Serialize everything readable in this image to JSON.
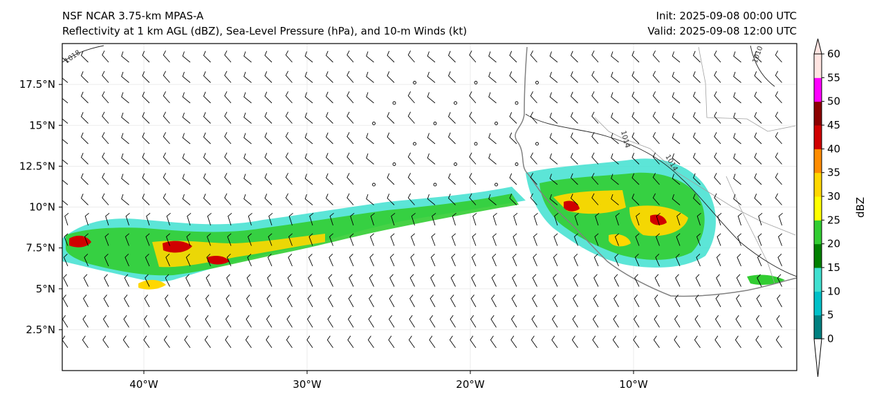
{
  "header": {
    "model": "NSF NCAR 3.75-km MPAS-A",
    "fields": "Reflectivity at 1 km AGL (dBZ), Sea-Level Pressure (hPa), and 10-m Winds (kt)",
    "init": "Init: 2025-09-08 00:00 UTC",
    "valid": "Valid: 2025-09-08 12:00 UTC"
  },
  "map": {
    "lon_range": [
      -45,
      0
    ],
    "lat_range": [
      0,
      20
    ],
    "x_ticks": [
      {
        "lon": -40,
        "label": "40°W"
      },
      {
        "lon": -30,
        "label": "30°W"
      },
      {
        "lon": -20,
        "label": "20°W"
      },
      {
        "lon": -10,
        "label": "10°W"
      }
    ],
    "y_ticks": [
      {
        "lat": 2.5,
        "label": "2.5°N"
      },
      {
        "lat": 5,
        "label": "5°N"
      },
      {
        "lat": 7.5,
        "label": "7.5°N"
      },
      {
        "lat": 10,
        "label": "10°N"
      },
      {
        "lat": 12.5,
        "label": "12.5°N"
      },
      {
        "lat": 15,
        "label": "15°N"
      },
      {
        "lat": 17.5,
        "label": "17.5°N"
      }
    ],
    "pressure_contours": [
      "1018",
      "1014",
      "1014",
      "1010"
    ]
  },
  "colorbar": {
    "label": "dBZ",
    "ticks": [
      "0",
      "5",
      "10",
      "15",
      "20",
      "25",
      "30",
      "35",
      "40",
      "45",
      "50",
      "55",
      "60"
    ],
    "colors": [
      "#008080",
      "#00c0c8",
      "#40e0d0",
      "#008000",
      "#32cd32",
      "#ffff00",
      "#ffd700",
      "#ff8c00",
      "#d00000",
      "#8b0000",
      "#ff00ff",
      "#ffe4e1"
    ]
  }
}
